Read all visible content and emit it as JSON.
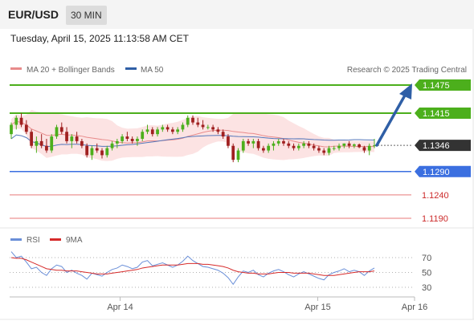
{
  "header": {
    "symbol": "EUR/USD",
    "timeframe": "30 MIN",
    "datetime": "Tuesday, April 15, 2025 11:13:58 AM CET"
  },
  "legend": {
    "ma20_label": "MA 20 + Bollinger Bands",
    "ma50_label": "MA 50",
    "credit": "Research © 2025 Trading Central",
    "rsi_label": "RSI",
    "rsi_ma_label": "9MA"
  },
  "colors": {
    "resistance": "#4caf1c",
    "pivot": "#3b6fe0",
    "support": "#e87a7a",
    "current": "#333333",
    "arrow": "#2f5fa6",
    "candle_up": "#4caf1c",
    "candle_down": "#a02020",
    "ma20": "#e88b8b",
    "ma50": "#5577bb",
    "band_fill": "#fcdede",
    "rsi": "#6a8fd8",
    "rsi_ma": "#d62a2a"
  },
  "chart_data": [
    {
      "type": "candlestick",
      "levels": [
        {
          "value": 1.1475,
          "label": "1.1475",
          "kind": "resistance"
        },
        {
          "value": 1.1415,
          "label": "1.1415",
          "kind": "resistance"
        },
        {
          "value": 1.1346,
          "label": "1.1346",
          "kind": "current"
        },
        {
          "value": 1.129,
          "label": "1.1290",
          "kind": "pivot"
        },
        {
          "value": 1.124,
          "label": "1.1240",
          "kind": "support"
        },
        {
          "value": 1.119,
          "label": "1.1190",
          "kind": "support"
        }
      ],
      "x_ticks": [
        "Apr 14",
        "Apr 15",
        "Apr 16"
      ],
      "x_tick_pos": [
        27,
        76,
        100
      ],
      "y_range": [
        1.119,
        1.1475
      ],
      "series": [
        {
          "name": "MA 20 + Bollinger Bands"
        },
        {
          "name": "MA 50"
        }
      ],
      "candles": [
        [
          1.137,
          1.1395,
          1.136,
          1.139
        ],
        [
          1.139,
          1.141,
          1.138,
          1.1405
        ],
        [
          1.1405,
          1.1415,
          1.1385,
          1.139
        ],
        [
          1.139,
          1.14,
          1.137,
          1.1375
        ],
        [
          1.1375,
          1.138,
          1.134,
          1.1345
        ],
        [
          1.1345,
          1.1365,
          1.133,
          1.1355
        ],
        [
          1.1355,
          1.137,
          1.134,
          1.1345
        ],
        [
          1.1345,
          1.136,
          1.133,
          1.1335
        ],
        [
          1.1335,
          1.137,
          1.133,
          1.1365
        ],
        [
          1.1365,
          1.139,
          1.136,
          1.1385
        ],
        [
          1.1385,
          1.1395,
          1.137,
          1.1375
        ],
        [
          1.1375,
          1.1385,
          1.135,
          1.1355
        ],
        [
          1.1355,
          1.137,
          1.134,
          1.1365
        ],
        [
          1.1365,
          1.1375,
          1.135,
          1.1355
        ],
        [
          1.1355,
          1.136,
          1.134,
          1.1345
        ],
        [
          1.1345,
          1.135,
          1.132,
          1.1325
        ],
        [
          1.1325,
          1.1345,
          1.1315,
          1.134
        ],
        [
          1.134,
          1.135,
          1.133,
          1.1335
        ],
        [
          1.1335,
          1.134,
          1.1318,
          1.1325
        ],
        [
          1.1325,
          1.1345,
          1.132,
          1.134
        ],
        [
          1.134,
          1.1355,
          1.1335,
          1.135
        ],
        [
          1.135,
          1.136,
          1.134,
          1.1355
        ],
        [
          1.1355,
          1.137,
          1.135,
          1.1365
        ],
        [
          1.1365,
          1.1375,
          1.1355,
          1.136
        ],
        [
          1.136,
          1.1365,
          1.135,
          1.1355
        ],
        [
          1.1355,
          1.1365,
          1.1345,
          1.136
        ],
        [
          1.136,
          1.138,
          1.1355,
          1.1375
        ],
        [
          1.1375,
          1.139,
          1.137,
          1.138
        ],
        [
          1.138,
          1.1385,
          1.1365,
          1.137
        ],
        [
          1.137,
          1.1385,
          1.1365,
          1.138
        ],
        [
          1.138,
          1.139,
          1.1375,
          1.1385
        ],
        [
          1.1385,
          1.139,
          1.1375,
          1.138
        ],
        [
          1.138,
          1.1385,
          1.137,
          1.1375
        ],
        [
          1.1375,
          1.1385,
          1.137,
          1.138
        ],
        [
          1.138,
          1.1395,
          1.1375,
          1.139
        ],
        [
          1.139,
          1.141,
          1.1385,
          1.1405
        ],
        [
          1.1405,
          1.141,
          1.139,
          1.1395
        ],
        [
          1.1395,
          1.1405,
          1.1385,
          1.139
        ],
        [
          1.139,
          1.14,
          1.138,
          1.1385
        ],
        [
          1.1385,
          1.139,
          1.138,
          1.1385
        ],
        [
          1.1385,
          1.139,
          1.1375,
          1.138
        ],
        [
          1.138,
          1.1385,
          1.137,
          1.1375
        ],
        [
          1.1375,
          1.138,
          1.136,
          1.1365
        ],
        [
          1.1365,
          1.137,
          1.134,
          1.1345
        ],
        [
          1.1345,
          1.135,
          1.131,
          1.1315
        ],
        [
          1.1315,
          1.134,
          1.131,
          1.1335
        ],
        [
          1.1335,
          1.136,
          1.133,
          1.1355
        ],
        [
          1.1355,
          1.136,
          1.1345,
          1.135
        ],
        [
          1.135,
          1.136,
          1.134,
          1.1355
        ],
        [
          1.1355,
          1.136,
          1.1335,
          1.134
        ],
        [
          1.134,
          1.1345,
          1.133,
          1.1335
        ],
        [
          1.1335,
          1.135,
          1.133,
          1.1345
        ],
        [
          1.1345,
          1.1355,
          1.1335,
          1.135
        ],
        [
          1.135,
          1.136,
          1.1345,
          1.1355
        ],
        [
          1.1355,
          1.136,
          1.1345,
          1.135
        ],
        [
          1.135,
          1.1355,
          1.134,
          1.1345
        ],
        [
          1.1345,
          1.135,
          1.1335,
          1.134
        ],
        [
          1.134,
          1.135,
          1.1335,
          1.1345
        ],
        [
          1.1345,
          1.1355,
          1.134,
          1.135
        ],
        [
          1.135,
          1.1355,
          1.134,
          1.1345
        ],
        [
          1.1345,
          1.135,
          1.1335,
          1.134
        ],
        [
          1.134,
          1.1345,
          1.133,
          1.1335
        ],
        [
          1.1335,
          1.134,
          1.1325,
          1.133
        ],
        [
          1.133,
          1.1345,
          1.1325,
          1.134
        ],
        [
          1.134,
          1.1345,
          1.1335,
          1.134
        ],
        [
          1.134,
          1.135,
          1.1335,
          1.1345
        ],
        [
          1.1345,
          1.135,
          1.134,
          1.135
        ],
        [
          1.135,
          1.1355,
          1.134,
          1.1345
        ],
        [
          1.1345,
          1.135,
          1.134,
          1.1348
        ],
        [
          1.1348,
          1.135,
          1.134,
          1.1342
        ],
        [
          1.1342,
          1.1345,
          1.133,
          1.1335
        ],
        [
          1.1335,
          1.135,
          1.1325,
          1.1345
        ],
        [
          1.1345,
          1.136,
          1.134,
          1.1346
        ]
      ]
    },
    {
      "type": "line",
      "title": "RSI",
      "y_ticks": [
        70,
        50,
        30
      ],
      "y_range": [
        20,
        80
      ],
      "series": [
        {
          "name": "RSI",
          "values": [
            78,
            70,
            72,
            64,
            55,
            57,
            50,
            46,
            55,
            60,
            58,
            50,
            53,
            49,
            46,
            41,
            49,
            47,
            45,
            50,
            54,
            56,
            60,
            58,
            55,
            57,
            64,
            66,
            59,
            61,
            63,
            60,
            57,
            60,
            65,
            72,
            66,
            62,
            58,
            57,
            55,
            53,
            49,
            43,
            34,
            44,
            52,
            50,
            53,
            47,
            44,
            49,
            52,
            54,
            51,
            47,
            44,
            48,
            51,
            48,
            45,
            42,
            40,
            47,
            50,
            52,
            55,
            51,
            53,
            51,
            46,
            52,
            56
          ]
        },
        {
          "name": "9MA",
          "values": [
            70,
            69,
            69,
            67,
            64,
            61,
            58,
            55,
            54,
            53,
            53,
            52,
            52,
            52,
            51,
            50,
            49,
            48,
            48,
            48,
            49,
            50,
            51,
            52,
            53,
            54,
            56,
            57,
            58,
            59,
            60,
            60,
            60,
            60,
            61,
            62,
            62,
            62,
            61,
            61,
            60,
            59,
            58,
            56,
            53,
            51,
            50,
            49,
            49,
            48,
            48,
            48,
            49,
            50,
            50,
            50,
            49,
            49,
            49,
            49,
            48,
            47,
            46,
            46,
            46,
            47,
            48,
            49,
            50,
            51,
            51,
            51,
            52
          ]
        }
      ]
    }
  ]
}
